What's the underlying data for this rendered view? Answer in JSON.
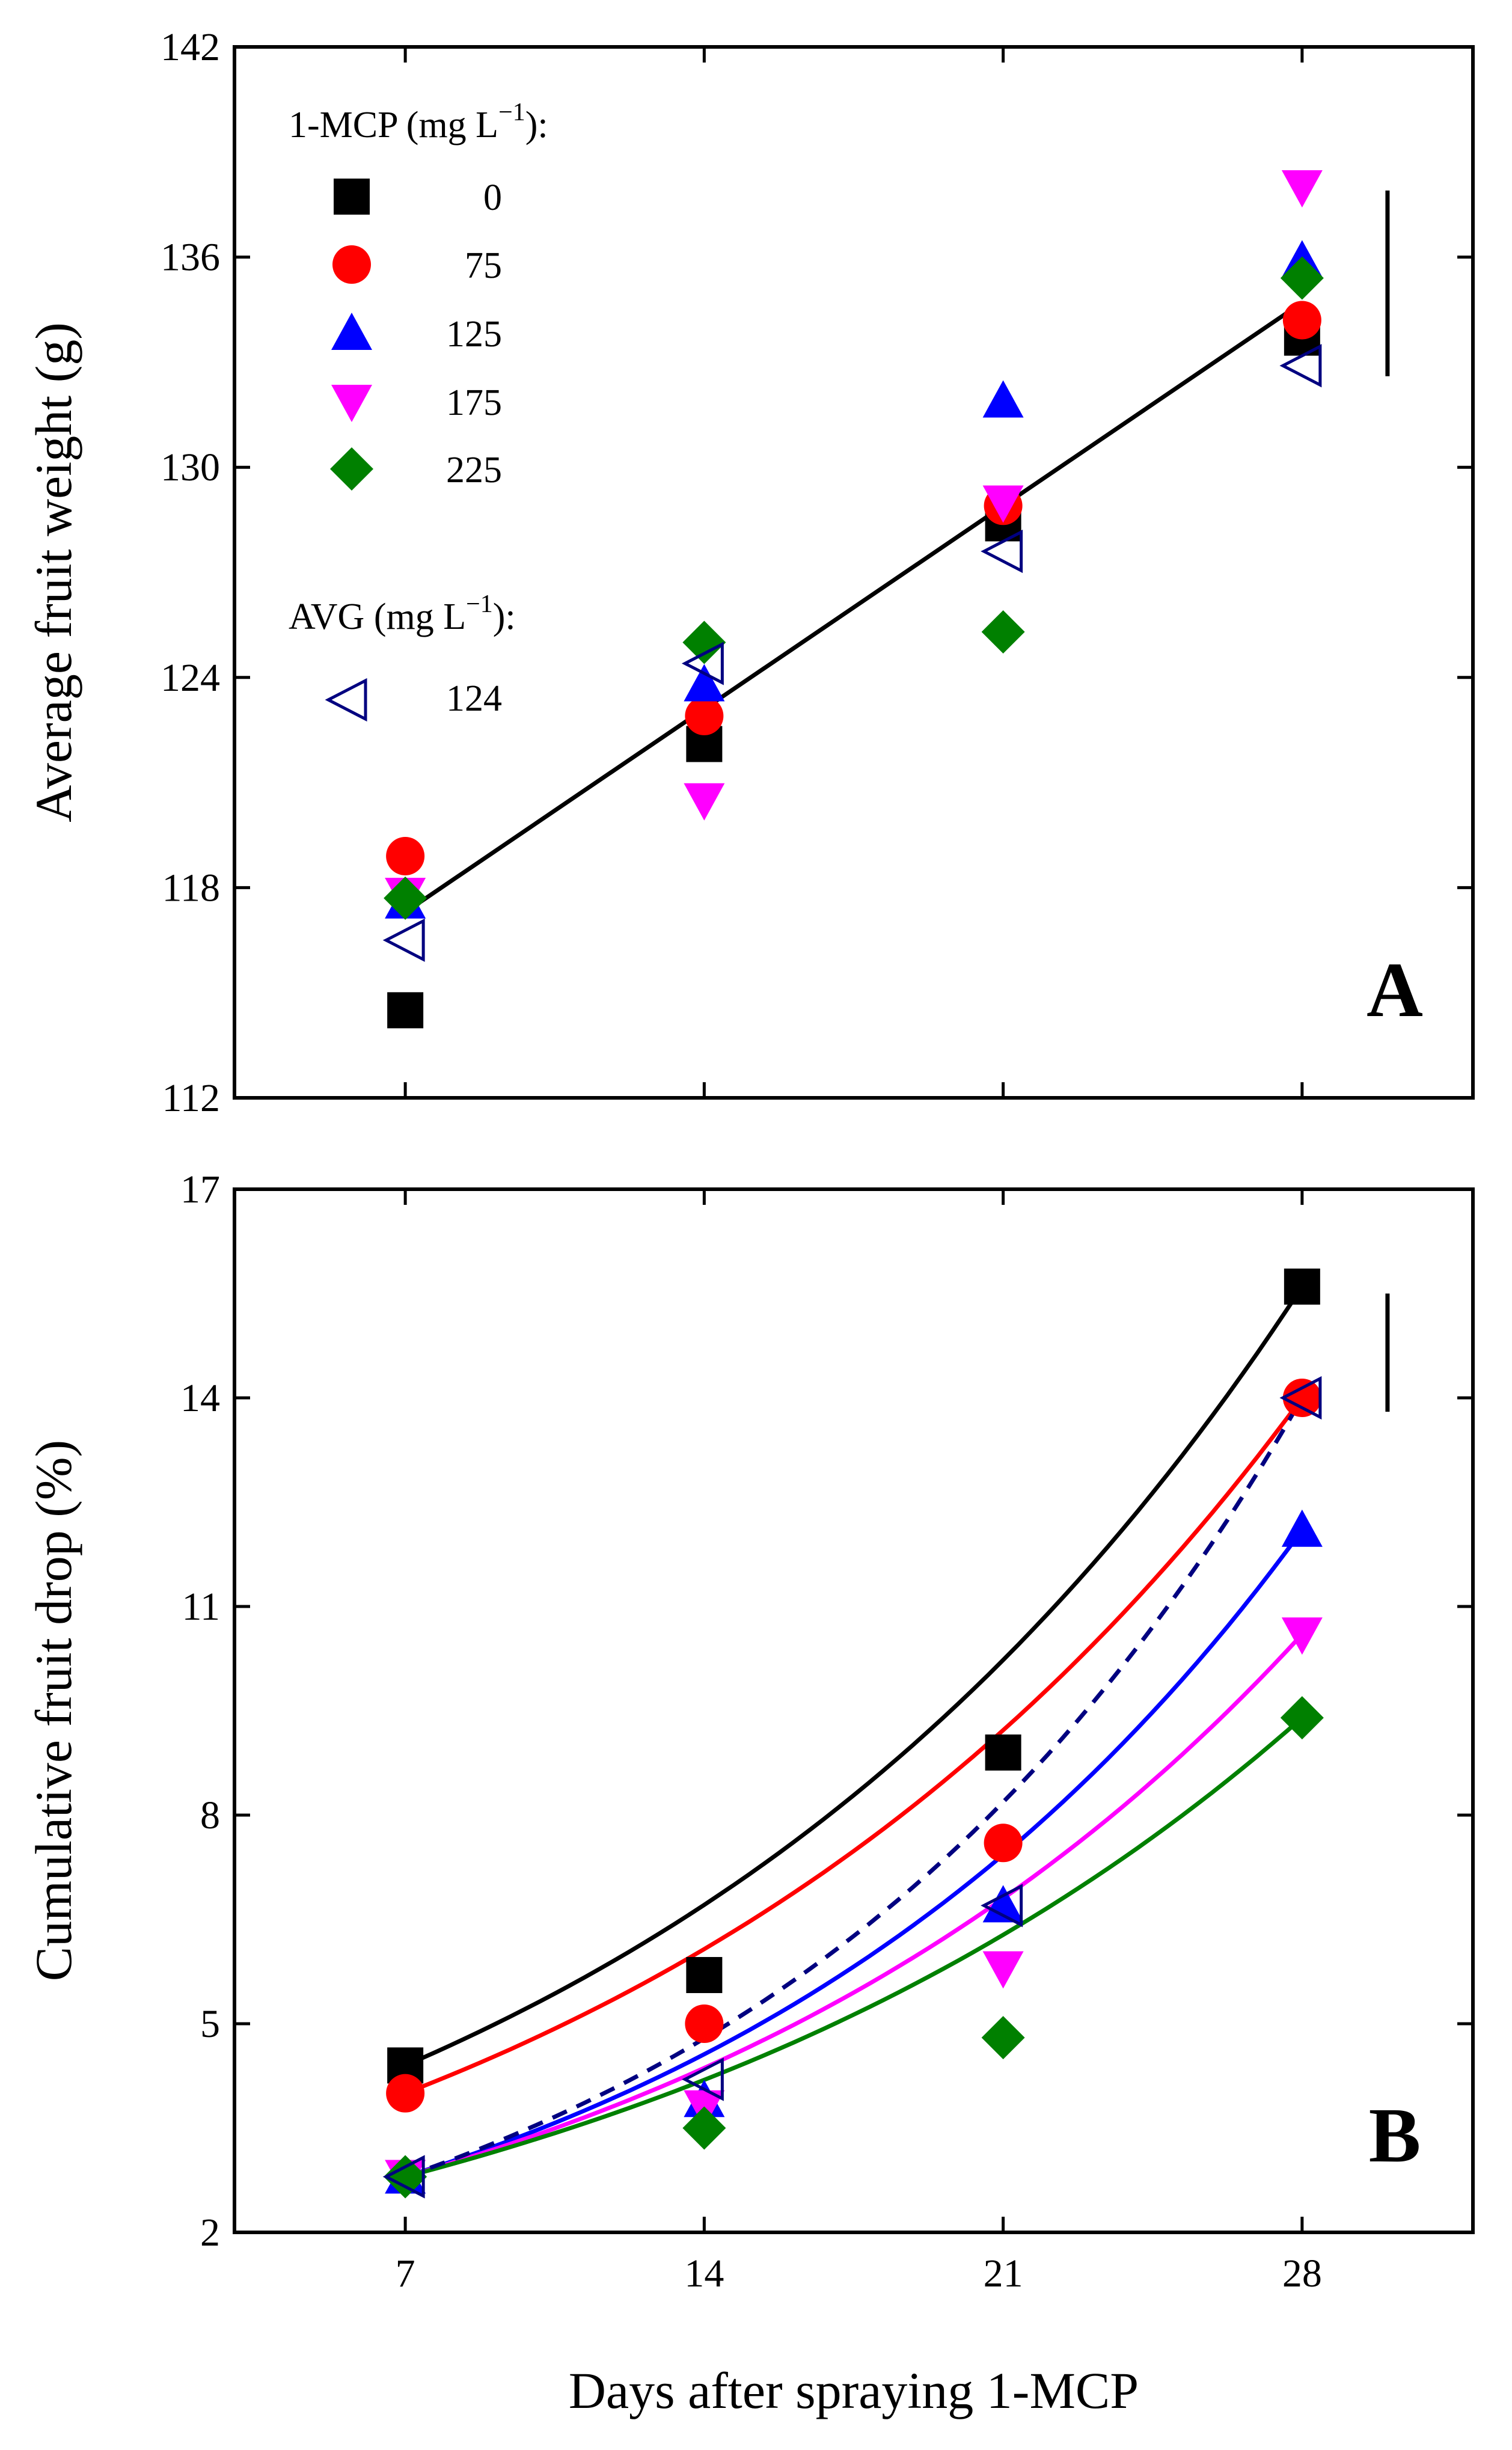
{
  "figure": {
    "xlabel": "Days after spraying 1-MCP",
    "x_ticks": [
      "7",
      "14",
      "21",
      "28"
    ]
  },
  "legend": {
    "mcp_header": "1-MCP (mg L",
    "mcp_header_sup": "−1",
    "mcp_header_end": "):",
    "avg_header": "AVG (mg L",
    "avg_header_sup": "−1",
    "avg_header_end": "):",
    "entries": [
      {
        "label": "0",
        "marker": "square",
        "color": "#000000"
      },
      {
        "label": "75",
        "marker": "circle",
        "color": "#ff0000"
      },
      {
        "label": "125",
        "marker": "triangle-up",
        "color": "#0000ff"
      },
      {
        "label": "175",
        "marker": "triangle-down",
        "color": "#ff00ff"
      },
      {
        "label": "225",
        "marker": "diamond",
        "color": "#008000"
      }
    ],
    "avg_entry": {
      "label": "124",
      "marker": "triangle-left-open",
      "color": "#000080"
    }
  },
  "chart_data": [
    {
      "type": "scatter",
      "panel": "A",
      "ylabel": "Average fruit weight (g)",
      "ylim": [
        112,
        142
      ],
      "xlim": [
        3,
        32
      ],
      "y_ticks": [
        "112",
        "118",
        "124",
        "130",
        "136",
        "142"
      ],
      "x": [
        7,
        14,
        21,
        28
      ],
      "series": [
        {
          "name": "0",
          "values": [
            114.5,
            122.1,
            128.4,
            133.7
          ],
          "color": "#000000",
          "marker": "square"
        },
        {
          "name": "75",
          "values": [
            118.9,
            122.9,
            128.9,
            134.2
          ],
          "color": "#ff0000",
          "marker": "circle"
        },
        {
          "name": "125",
          "values": [
            117.6,
            123.8,
            131.9,
            135.9
          ],
          "color": "#0000ff",
          "marker": "triangle-up"
        },
        {
          "name": "175",
          "values": [
            117.8,
            120.5,
            129.0,
            138.0
          ],
          "color": "#ff00ff",
          "marker": "triangle-down"
        },
        {
          "name": "225",
          "values": [
            117.7,
            125.0,
            125.3,
            135.4
          ],
          "color": "#008000",
          "marker": "diamond"
        },
        {
          "name": "124",
          "values": [
            116.5,
            124.4,
            127.6,
            132.9
          ],
          "color": "#000080",
          "marker": "triangle-left-open"
        }
      ],
      "fit_line": {
        "x": [
          7,
          28
        ],
        "y": [
          117.3,
          134.7
        ],
        "color": "#000000"
      },
      "error_bar": {
        "x": 30,
        "y_range": [
          132.6,
          137.9
        ]
      }
    },
    {
      "type": "scatter",
      "panel": "B",
      "ylabel": "Cumulative fruit drop (%)",
      "ylim": [
        2,
        17
      ],
      "xlim": [
        3,
        32
      ],
      "y_ticks": [
        "2",
        "5",
        "8",
        "11",
        "14",
        "17"
      ],
      "x": [
        7,
        14,
        21,
        28
      ],
      "series": [
        {
          "name": "0",
          "values": [
            4.4,
            5.7,
            8.9,
            15.6
          ],
          "color": "#000000",
          "marker": "square",
          "curve": "solid"
        },
        {
          "name": "75",
          "values": [
            4.0,
            5.0,
            7.6,
            14.0
          ],
          "color": "#ff0000",
          "marker": "circle",
          "curve": "solid"
        },
        {
          "name": "125",
          "values": [
            2.8,
            3.9,
            6.7,
            12.1
          ],
          "color": "#0000ff",
          "marker": "triangle-up",
          "curve": "solid"
        },
        {
          "name": "175",
          "values": [
            2.8,
            3.8,
            5.8,
            10.6
          ],
          "color": "#ff00ff",
          "marker": "triangle-down",
          "curve": "solid"
        },
        {
          "name": "225",
          "values": [
            2.8,
            3.5,
            4.8,
            9.4
          ],
          "color": "#008000",
          "marker": "diamond",
          "curve": "solid"
        },
        {
          "name": "124",
          "values": [
            2.8,
            4.2,
            6.7,
            14.0
          ],
          "color": "#000080",
          "marker": "triangle-left-open",
          "curve": "dashed"
        }
      ],
      "error_bar": {
        "x": 30,
        "y_range": [
          13.8,
          15.5
        ]
      }
    }
  ]
}
